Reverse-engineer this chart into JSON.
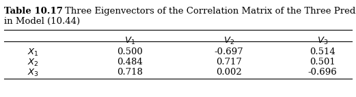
{
  "title_bold": "Table 10.17",
  "title_rest": "    Three Eigenvectors of the Correlation Matrix of the Three Predictors",
  "title_line2": "in Model (10.44)",
  "col_headers": [
    "$V_1$",
    "$V_2$",
    "$V_3$"
  ],
  "row_labels": [
    "$X_1$",
    "$X_2$",
    "$X_3$"
  ],
  "data": [
    [
      "0.500",
      "-0.697",
      "0.514"
    ],
    [
      "0.484",
      "0.717",
      "0.501"
    ],
    [
      "0.718",
      "0.002",
      "-0.696"
    ]
  ],
  "background_color": "#ffffff",
  "font_size": 9.5
}
